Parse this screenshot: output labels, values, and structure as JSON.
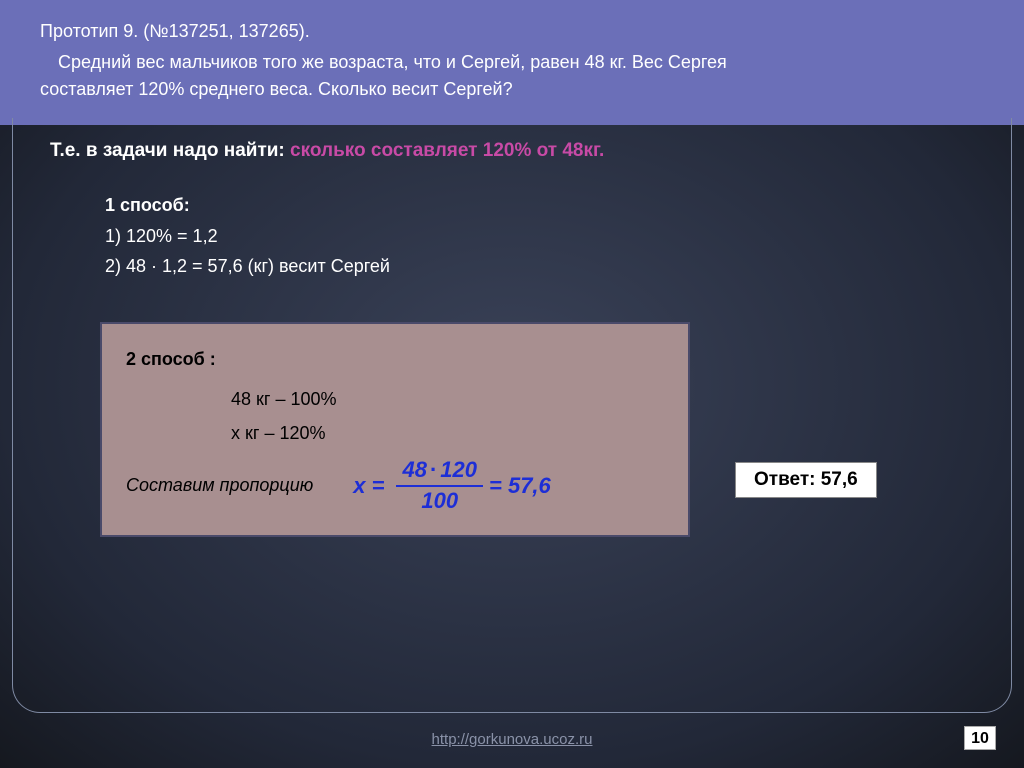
{
  "header": {
    "title": "Прототип 9. (№137251, 137265).",
    "line1": "Средний вес мальчиков того же возраста, что и Сергей, равен 48 кг. Вес Сергея",
    "line2": "составляет 120% среднего веса. Сколько весит Сергей?"
  },
  "task": {
    "prefix": "Т.е. в задачи надо найти: ",
    "highlight": "сколько составляет 120% от 48кг."
  },
  "method1": {
    "title": "1 способ:",
    "step1": "1)   120% = 1,2",
    "step2": "2)   48 · 1,2 = 57,6 (кг) весит Сергей"
  },
  "method2": {
    "title": "2 способ :",
    "line1": "48 кг – 100%",
    "line2": "x кг  – 120%",
    "prop_label": "Составим пропорцию",
    "formula": {
      "lhs": "x =",
      "num_a": "48",
      "num_b": "120",
      "den": "100",
      "result": "= 57,6"
    }
  },
  "answer": {
    "label": "Ответ:  57,6"
  },
  "footer": {
    "link": "http://gorkunova.ucoz.ru",
    "slide": "10"
  },
  "colors": {
    "header_bg": "#6b6fb8",
    "highlight_text": "#c84aa6",
    "formula_color": "#1d2ed6",
    "method2_bg": "#a88f90"
  }
}
